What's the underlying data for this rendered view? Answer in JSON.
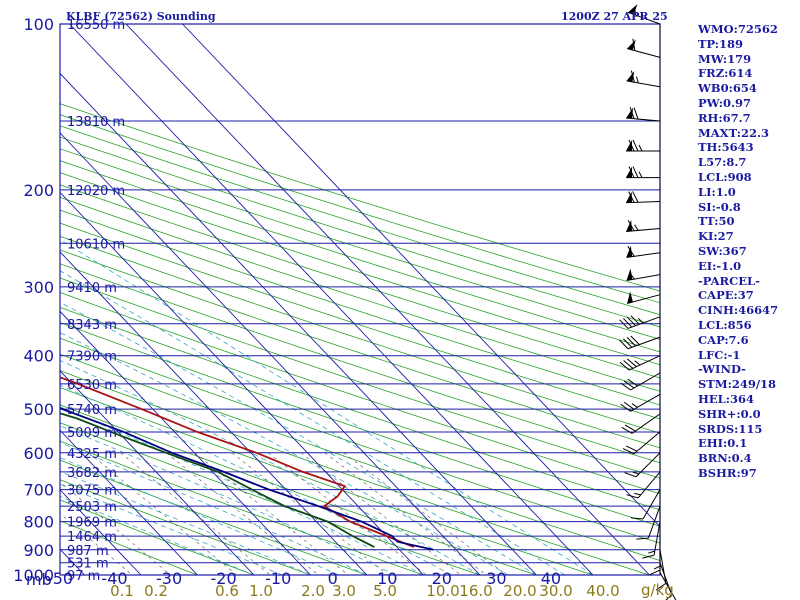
{
  "chart_data": {
    "type": "skew-t",
    "station_title": "KLBF (72562) Sounding",
    "time_title": "1200Z 27 APR 25",
    "y_unit": "mb",
    "mixing_ratio_unit": "g/kg",
    "pressure_ticks": [
      100,
      200,
      300,
      400,
      500,
      600,
      700,
      800,
      900,
      1000
    ],
    "temperature_ticks": [
      -50,
      -40,
      -30,
      -20,
      -10,
      0,
      10,
      20,
      30,
      40
    ],
    "mixing_ratio_ticks": [
      "0.1",
      "0.2",
      "0.6",
      "1.0",
      "2.0",
      "3.0",
      "5.0",
      "10.0",
      "16.0",
      "20.0",
      "30.0",
      "40.0"
    ],
    "height_labels": [
      {
        "p": 100,
        "label": "16550 m"
      },
      {
        "p": 150,
        "label": "13810 m"
      },
      {
        "p": 200,
        "label": "12020 m"
      },
      {
        "p": 250,
        "label": "10610 m"
      },
      {
        "p": 300,
        "label": "9410 m"
      },
      {
        "p": 350,
        "label": "8343 m"
      },
      {
        "p": 400,
        "label": "7390 m"
      },
      {
        "p": 450,
        "label": "6530 m"
      },
      {
        "p": 500,
        "label": "5740 m"
      },
      {
        "p": 550,
        "label": "5009 m"
      },
      {
        "p": 600,
        "label": "4325 m"
      },
      {
        "p": 650,
        "label": "3682 m"
      },
      {
        "p": 700,
        "label": "3075 m"
      },
      {
        "p": 750,
        "label": "2503 m"
      },
      {
        "p": 800,
        "label": "1969 m"
      },
      {
        "p": 850,
        "label": "1464 m"
      },
      {
        "p": 900,
        "label": "987 m"
      },
      {
        "p": 950,
        "label": "531 m"
      },
      {
        "p": 1000,
        "label": "97 m"
      }
    ],
    "series": [
      {
        "color": "#aa1111",
        "points": [
          [
            100,
            -69
          ],
          [
            108,
            -66
          ],
          [
            115,
            -64
          ],
          [
            125,
            -62
          ],
          [
            135,
            -62
          ],
          [
            150,
            -63
          ],
          [
            162,
            -59
          ],
          [
            178,
            -64
          ],
          [
            195,
            -67
          ],
          [
            215,
            -63
          ],
          [
            250,
            -55
          ],
          [
            300,
            -46
          ],
          [
            350,
            -38
          ],
          [
            400,
            -28
          ],
          [
            450,
            -19
          ],
          [
            500,
            -12
          ],
          [
            550,
            -6
          ],
          [
            600,
            1
          ],
          [
            650,
            6
          ],
          [
            690,
            11
          ],
          [
            720,
            8
          ],
          [
            750,
            4
          ],
          [
            800,
            6
          ],
          [
            850,
            10
          ],
          [
            890,
            13
          ]
        ]
      },
      {
        "color": "#114a11",
        "points": [
          [
            100,
            -96
          ],
          [
            115,
            -92
          ],
          [
            130,
            -90
          ],
          [
            150,
            -86
          ],
          [
            170,
            -82
          ],
          [
            190,
            -78
          ],
          [
            210,
            -76
          ],
          [
            250,
            -70
          ],
          [
            280,
            -67
          ],
          [
            310,
            -60
          ],
          [
            350,
            -59
          ],
          [
            390,
            -60
          ],
          [
            410,
            -48
          ],
          [
            440,
            -38
          ],
          [
            480,
            -33
          ],
          [
            520,
            -25
          ],
          [
            560,
            -20
          ],
          [
            600,
            -15
          ],
          [
            650,
            -9
          ],
          [
            700,
            -6
          ],
          [
            750,
            -3
          ],
          [
            800,
            2
          ],
          [
            850,
            4
          ],
          [
            890,
            6
          ]
        ]
      },
      {
        "color": "#000080",
        "points": [
          [
            900,
            16
          ],
          [
            870,
            11
          ],
          [
            850,
            11
          ],
          [
            800,
            8
          ],
          [
            750,
            3
          ],
          [
            700,
            -3
          ],
          [
            650,
            -8
          ],
          [
            600,
            -14
          ],
          [
            550,
            -19
          ],
          [
            500,
            -26
          ],
          [
            450,
            -33
          ],
          [
            400,
            -41
          ],
          [
            350,
            -49
          ],
          [
            300,
            -58
          ],
          [
            250,
            -68
          ],
          [
            200,
            -79
          ],
          [
            150,
            -93
          ],
          [
            110,
            -107
          ]
        ]
      }
    ],
    "winds": [
      {
        "p": 100,
        "dir": 290,
        "spd": 55
      },
      {
        "p": 115,
        "dir": 285,
        "spd": 60
      },
      {
        "p": 130,
        "dir": 280,
        "spd": 65
      },
      {
        "p": 150,
        "dir": 275,
        "spd": 70
      },
      {
        "p": 170,
        "dir": 270,
        "spd": 75
      },
      {
        "p": 190,
        "dir": 270,
        "spd": 75
      },
      {
        "p": 210,
        "dir": 268,
        "spd": 70
      },
      {
        "p": 235,
        "dir": 265,
        "spd": 65
      },
      {
        "p": 260,
        "dir": 262,
        "spd": 60
      },
      {
        "p": 285,
        "dir": 260,
        "spd": 55
      },
      {
        "p": 310,
        "dir": 255,
        "spd": 50
      },
      {
        "p": 340,
        "dir": 250,
        "spd": 45
      },
      {
        "p": 370,
        "dir": 250,
        "spd": 40
      },
      {
        "p": 400,
        "dir": 245,
        "spd": 35
      },
      {
        "p": 430,
        "dir": 240,
        "spd": 30
      },
      {
        "p": 470,
        "dir": 240,
        "spd": 25
      },
      {
        "p": 510,
        "dir": 235,
        "spd": 20
      },
      {
        "p": 550,
        "dir": 230,
        "spd": 20
      },
      {
        "p": 600,
        "dir": 225,
        "spd": 15
      },
      {
        "p": 650,
        "dir": 220,
        "spd": 15
      },
      {
        "p": 700,
        "dir": 210,
        "spd": 10
      },
      {
        "p": 750,
        "dir": 200,
        "spd": 10
      },
      {
        "p": 800,
        "dir": 190,
        "spd": 15
      },
      {
        "p": 850,
        "dir": 180,
        "spd": 15
      },
      {
        "p": 900,
        "dir": 170,
        "spd": 10
      },
      {
        "p": 950,
        "dir": 160,
        "spd": 10
      },
      {
        "p": 990,
        "dir": 150,
        "spd": 5
      }
    ]
  },
  "sidebar": {
    "items": [
      "WMO:72562",
      "TP:189",
      "MW:179",
      "FRZ:614",
      "WB0:654",
      "PW:0.97",
      "RH:67.7",
      "MAXT:22.3",
      "TH:5643",
      "L57:8.7",
      "LCL:908",
      "LI:1.0",
      "SI:-0.8",
      "TT:50",
      "KI:27",
      "SW:367",
      "EI:-1.0",
      "-PARCEL-",
      "CAPE:37",
      "CINH:46647",
      "LCL:856",
      "CAP:7.6",
      "LFC:-1",
      "-WIND-",
      "STM:249/18",
      "HEL:364",
      "SHR+:0.0",
      "SRDS:115",
      "EHI:0.1",
      "BRN:0.4",
      "BSHR:97"
    ]
  }
}
